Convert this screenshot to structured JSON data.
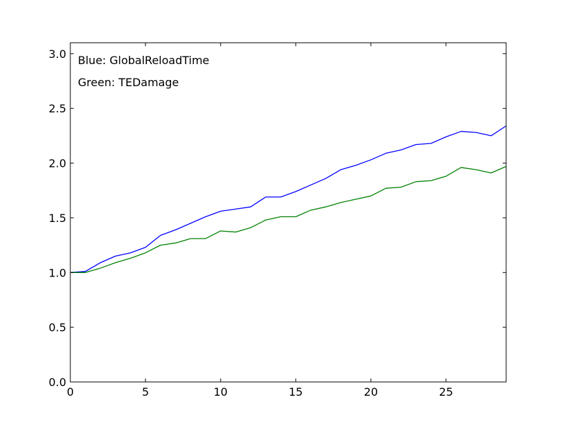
{
  "chart_data": {
    "type": "line",
    "title": "",
    "xlabel": "",
    "ylabel": "",
    "xlim": [
      0,
      29
    ],
    "ylim": [
      0,
      3.1
    ],
    "x_ticks": [
      0,
      5,
      10,
      15,
      20,
      25
    ],
    "x_tick_labels": [
      "0",
      "5",
      "10",
      "15",
      "20",
      "25"
    ],
    "y_ticks": [
      0,
      0.5,
      1,
      1.5,
      2,
      2.5,
      3
    ],
    "y_tick_labels": [
      "0.0",
      "0.5",
      "1.0",
      "1.5",
      "2.0",
      "2.5",
      "3.0"
    ],
    "grid": false,
    "legend": "none",
    "annotations": [
      {
        "text": "Blue: GlobalReloadTime"
      },
      {
        "text": "Green: TEDamage"
      }
    ],
    "x": [
      0,
      1,
      2,
      3,
      4,
      5,
      6,
      7,
      8,
      9,
      10,
      11,
      12,
      13,
      14,
      15,
      16,
      17,
      18,
      19,
      20,
      21,
      22,
      23,
      24,
      25,
      26,
      27,
      28,
      29
    ],
    "series": [
      {
        "color": "#0000ff",
        "values": [
          1.0,
          1.01,
          1.09,
          1.15,
          1.18,
          1.23,
          1.34,
          1.39,
          1.45,
          1.51,
          1.56,
          1.58,
          1.6,
          1.69,
          1.69,
          1.74,
          1.8,
          1.86,
          1.94,
          1.98,
          2.03,
          2.09,
          2.12,
          2.17,
          2.18,
          2.24,
          2.29,
          2.28,
          2.25,
          2.34
        ]
      },
      {
        "color": "#008000",
        "values": [
          1.0,
          1.0,
          1.04,
          1.09,
          1.13,
          1.18,
          1.25,
          1.27,
          1.31,
          1.31,
          1.38,
          1.37,
          1.41,
          1.48,
          1.51,
          1.51,
          1.57,
          1.6,
          1.64,
          1.67,
          1.7,
          1.77,
          1.78,
          1.83,
          1.84,
          1.88,
          1.96,
          1.94,
          1.91,
          1.97
        ]
      }
    ]
  }
}
